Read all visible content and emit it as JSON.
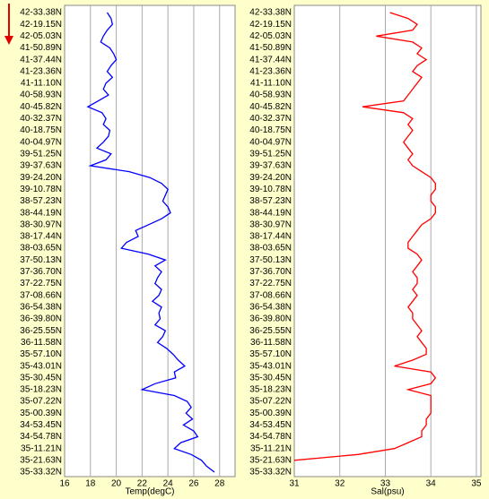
{
  "chart_data": [
    {
      "type": "line",
      "x_label": "Temp(degC)",
      "color": "#0000ff",
      "grid": true,
      "categories": [
        "42-33.38N",
        null,
        "42-19.15N",
        null,
        "42-05.03N",
        null,
        "41-50.89N",
        null,
        "41-37.44N",
        null,
        "41-23.36N",
        null,
        "41-11.10N",
        null,
        "40-58.93N",
        null,
        "40-45.82N",
        null,
        "40-32.37N",
        null,
        "40-18.75N",
        null,
        "40-04.97N",
        null,
        "39-51.25N",
        null,
        "39-37.63N",
        null,
        "39-24.20N",
        null,
        "39-10.78N",
        null,
        "38-57.23N",
        null,
        "38-44.19N",
        null,
        "38-30.97N",
        null,
        "38-17.44N",
        null,
        "38-03.65N",
        null,
        "37-50.13N",
        null,
        "37-36.70N",
        null,
        "37-22.75N",
        null,
        "37-08.66N",
        null,
        "36-54.38N",
        null,
        "36-39.80N",
        null,
        "36-25.55N",
        null,
        "36-11.58N",
        null,
        "35-57.10N",
        null,
        "35-43.01N",
        null,
        "35-30.45N",
        null,
        "35-18.23N",
        null,
        "35-07.22N",
        null,
        "35-00.39N",
        null,
        "34-53.45N",
        null,
        "34-54.78N",
        null,
        "35-11.21N",
        null,
        "35-21.63N",
        null,
        "35-33.32N"
      ],
      "values": [
        19.3,
        19.6,
        19.7,
        19.3,
        19.0,
        18.8,
        19.5,
        19.8,
        20.0,
        19.6,
        19.3,
        19.7,
        19.2,
        19.0,
        19.4,
        18.6,
        17.8,
        18.9,
        19.2,
        19.0,
        19.5,
        19.4,
        19.0,
        18.5,
        19.6,
        19.2,
        18.0,
        21.0,
        22.6,
        23.5,
        24.0,
        23.8,
        23.6,
        24.0,
        24.2,
        23.5,
        22.5,
        21.5,
        21.7,
        20.8,
        20.4,
        22.5,
        23.8,
        23.0,
        23.5,
        23.2,
        23.0,
        23.5,
        23.3,
        22.8,
        23.5,
        23.3,
        23.4,
        23.0,
        23.8,
        23.6,
        23.2,
        23.9,
        24.4,
        24.8,
        25.3,
        24.5,
        24.6,
        23.0,
        22.0,
        24.5,
        25.5,
        25.8,
        25.4,
        25.9,
        25.2,
        26.0,
        26.3,
        25.0,
        24.5,
        25.8,
        26.6,
        27.0,
        27.6
      ],
      "xlim": [
        16,
        29.2
      ],
      "xticks": [
        16,
        18,
        20,
        22,
        24,
        26,
        28
      ]
    },
    {
      "type": "line",
      "x_label": "Sal(psu)",
      "color": "#ff0000",
      "grid": true,
      "categories": [
        "42-33.38N",
        null,
        "42-19.15N",
        null,
        "42-05.03N",
        null,
        "41-50.89N",
        null,
        "41-37.44N",
        null,
        "41-23.36N",
        null,
        "41-11.10N",
        null,
        "40-58.93N",
        null,
        "40-45.82N",
        null,
        "40-32.37N",
        null,
        "40-18.75N",
        null,
        "40-04.97N",
        null,
        "39-51.25N",
        null,
        "39-37.63N",
        null,
        "39-24.20N",
        null,
        "39-10.78N",
        null,
        "38-57.23N",
        null,
        "38-44.19N",
        null,
        "38-30.97N",
        null,
        "38-17.44N",
        null,
        "38-03.65N",
        null,
        "37-50.13N",
        null,
        "37-36.70N",
        null,
        "37-22.75N",
        null,
        "37-08.66N",
        null,
        "36-54.38N",
        null,
        "36-39.80N",
        null,
        "36-25.55N",
        null,
        "36-11.58N",
        null,
        "35-57.10N",
        null,
        "35-43.01N",
        null,
        "35-30.45N",
        null,
        "35-18.23N",
        null,
        "35-07.22N",
        null,
        "35-00.39N",
        null,
        "34-53.45N",
        null,
        "34-54.78N",
        null,
        "35-11.21N",
        null,
        "35-21.63N",
        null,
        "35-33.32N"
      ],
      "values": [
        33.1,
        33.5,
        33.7,
        33.6,
        32.8,
        33.6,
        33.8,
        33.7,
        33.9,
        33.7,
        33.6,
        33.8,
        33.7,
        33.6,
        33.5,
        33.4,
        32.5,
        33.4,
        33.6,
        33.5,
        33.6,
        33.5,
        33.4,
        33.5,
        33.6,
        33.5,
        33.6,
        33.8,
        34.0,
        34.1,
        34.1,
        34.0,
        34.0,
        34.1,
        34.1,
        34.0,
        33.8,
        33.7,
        33.6,
        33.5,
        33.5,
        33.7,
        33.8,
        33.7,
        33.6,
        33.7,
        33.7,
        33.6,
        33.7,
        33.6,
        33.5,
        33.6,
        33.6,
        33.7,
        33.8,
        33.7,
        33.8,
        33.9,
        33.9,
        33.6,
        33.2,
        34.0,
        34.1,
        34.0,
        33.5,
        34.0,
        34.0,
        34.0,
        34.0,
        33.9,
        33.9,
        33.8,
        33.8,
        33.5,
        33.2,
        32.4,
        31.0,
        null,
        null
      ],
      "xlim": [
        31,
        35.1
      ],
      "xticks": [
        31,
        32,
        33,
        34,
        35
      ]
    }
  ]
}
